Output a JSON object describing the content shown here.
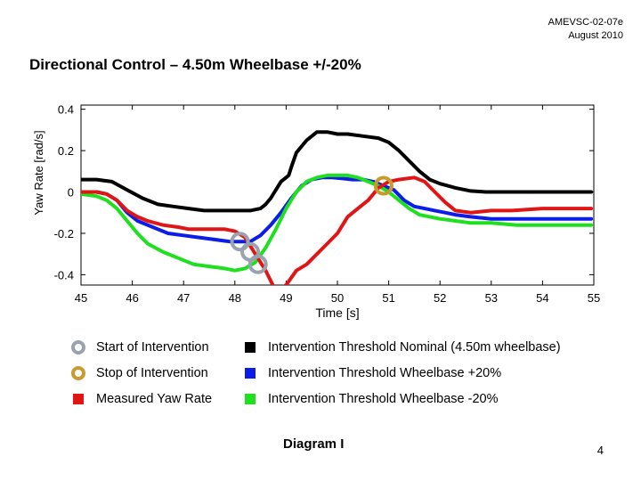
{
  "header": {
    "doc_code": "AMEVSC-02-07e",
    "date": "August 2010"
  },
  "slide_title": "Directional Control – 4.50m Wheelbase +/-20%",
  "chart_data": {
    "type": "line",
    "title": "",
    "xlabel": "Time [s]",
    "ylabel": "Yaw Rate [rad/s]",
    "xlim": [
      45,
      55
    ],
    "ylim": [
      -0.45,
      0.42
    ],
    "x_ticks": [
      "45",
      "46",
      "47",
      "48",
      "49",
      "50",
      "51",
      "52",
      "53",
      "54",
      "55"
    ],
    "y_ticks": [
      {
        "value": 0.4,
        "label": "0.4"
      },
      {
        "value": 0.2,
        "label": "0.2"
      },
      {
        "value": 0,
        "label": "0"
      },
      {
        "value": -0.2,
        "label": "-0.2"
      },
      {
        "value": -0.4,
        "label": "-0.4"
      }
    ],
    "series": [
      {
        "name": "Intervention Threshold Nominal (4.50m wheelbase)",
        "color": "#000000",
        "x": [
          45.0,
          45.3,
          45.6,
          45.9,
          46.2,
          46.5,
          46.8,
          47.1,
          47.4,
          47.7,
          48.0,
          48.3,
          48.5,
          48.6,
          48.7,
          48.9,
          49.05,
          49.1,
          49.2,
          49.4,
          49.6,
          49.8,
          50.0,
          50.2,
          50.5,
          50.8,
          51.0,
          51.2,
          51.4,
          51.6,
          51.8,
          52.0,
          52.3,
          52.6,
          52.9,
          53.2,
          53.6,
          54.0,
          54.5,
          54.95
        ],
        "y": [
          0.06,
          0.06,
          0.05,
          0.01,
          -0.03,
          -0.06,
          -0.07,
          -0.08,
          -0.09,
          -0.09,
          -0.09,
          -0.09,
          -0.08,
          -0.06,
          -0.03,
          0.05,
          0.08,
          0.12,
          0.19,
          0.25,
          0.29,
          0.29,
          0.28,
          0.28,
          0.27,
          0.26,
          0.24,
          0.2,
          0.15,
          0.1,
          0.06,
          0.04,
          0.02,
          0.005,
          0.0,
          0.0,
          0.0,
          0.0,
          0.0,
          0.0
        ]
      },
      {
        "name": "Intervention Threshold Wheelbase +20%",
        "color": "#0b1de6",
        "x": [
          45.0,
          45.3,
          45.5,
          45.7,
          45.9,
          46.1,
          46.4,
          46.7,
          47.0,
          47.3,
          47.6,
          47.9,
          48.1,
          48.3,
          48.5,
          48.7,
          48.9,
          49.1,
          49.3,
          49.5,
          49.7,
          49.9,
          50.1,
          50.3,
          50.5,
          50.7,
          50.9,
          51.1,
          51.3,
          51.5,
          51.7,
          51.9,
          52.1,
          52.3,
          52.6,
          53.0,
          53.5,
          54.0,
          54.5,
          54.95
        ],
        "y": [
          0.0,
          0.0,
          -0.01,
          -0.04,
          -0.1,
          -0.14,
          -0.17,
          -0.2,
          -0.21,
          -0.22,
          -0.23,
          -0.24,
          -0.24,
          -0.24,
          -0.21,
          -0.16,
          -0.1,
          -0.03,
          0.03,
          0.06,
          0.07,
          0.07,
          0.065,
          0.06,
          0.06,
          0.05,
          0.03,
          0.01,
          -0.04,
          -0.07,
          -0.08,
          -0.09,
          -0.1,
          -0.11,
          -0.12,
          -0.13,
          -0.13,
          -0.13,
          -0.13,
          -0.13
        ]
      },
      {
        "name": "Intervention Threshold Wheelbase -20%",
        "color": "#1fe01f",
        "x": [
          45.0,
          45.3,
          45.5,
          45.7,
          45.9,
          46.1,
          46.3,
          46.6,
          46.9,
          47.2,
          47.5,
          47.8,
          48.0,
          48.2,
          48.4,
          48.6,
          48.8,
          49.0,
          49.2,
          49.4,
          49.6,
          49.8,
          50.0,
          50.2,
          50.4,
          50.6,
          50.8,
          51.0,
          51.2,
          51.4,
          51.6,
          51.8,
          52.0,
          52.3,
          52.6,
          53.0,
          53.5,
          54.0,
          54.5,
          54.95
        ],
        "y": [
          -0.01,
          -0.02,
          -0.04,
          -0.08,
          -0.14,
          -0.2,
          -0.25,
          -0.29,
          -0.32,
          -0.35,
          -0.36,
          -0.37,
          -0.38,
          -0.37,
          -0.34,
          -0.27,
          -0.18,
          -0.08,
          0.0,
          0.05,
          0.07,
          0.08,
          0.08,
          0.08,
          0.07,
          0.05,
          0.03,
          0.0,
          -0.04,
          -0.08,
          -0.11,
          -0.12,
          -0.13,
          -0.14,
          -0.15,
          -0.15,
          -0.16,
          -0.16,
          -0.16,
          -0.16
        ]
      },
      {
        "name": "Measured Yaw Rate",
        "color": "#e01515",
        "x": [
          45.0,
          45.3,
          45.5,
          45.7,
          45.9,
          46.1,
          46.3,
          46.6,
          46.9,
          47.1,
          47.4,
          47.8,
          48.0,
          48.2,
          48.4,
          48.6,
          48.8,
          49.0,
          49.2,
          49.4,
          49.6,
          49.8,
          50.0,
          50.2,
          50.4,
          50.6,
          50.8,
          51.0,
          51.2,
          51.5,
          51.7,
          51.9,
          52.1,
          52.3,
          52.6,
          53.0,
          53.4,
          54.0,
          54.5,
          54.95
        ],
        "y": [
          0.0,
          0.0,
          -0.01,
          -0.04,
          -0.09,
          -0.12,
          -0.14,
          -0.16,
          -0.17,
          -0.18,
          -0.18,
          -0.18,
          -0.19,
          -0.22,
          -0.3,
          -0.38,
          -0.48,
          -0.45,
          -0.38,
          -0.35,
          -0.3,
          -0.25,
          -0.2,
          -0.12,
          -0.08,
          -0.04,
          0.02,
          0.05,
          0.06,
          0.07,
          0.05,
          0.0,
          -0.05,
          -0.09,
          -0.1,
          -0.09,
          -0.09,
          -0.08,
          -0.08,
          -0.08
        ]
      }
    ],
    "markers": [
      {
        "type": "Start of Intervention",
        "color": "#9aa3ad",
        "points": [
          {
            "x": 48.1,
            "y": -0.24
          },
          {
            "x": 48.3,
            "y": -0.29
          },
          {
            "x": 48.45,
            "y": -0.35
          }
        ]
      },
      {
        "type": "Stop of Intervention",
        "color": "#c99a2e",
        "points": [
          {
            "x": 50.9,
            "y": 0.03
          }
        ]
      }
    ]
  },
  "legend": [
    {
      "label": "Start of Intervention",
      "kind": "ring",
      "color": "#9aa3ad"
    },
    {
      "label": "Intervention Threshold Nominal (4.50m wheelbase)",
      "kind": "square",
      "color": "#000000"
    },
    {
      "label": "Stop of Intervention",
      "kind": "ring",
      "color": "#c99a2e"
    },
    {
      "label": "Intervention Threshold Wheelbase +20%",
      "kind": "square",
      "color": "#0b1de6"
    },
    {
      "label": "Measured Yaw Rate",
      "kind": "square",
      "color": "#e01515"
    },
    {
      "label": "Intervention Threshold Wheelbase -20%",
      "kind": "square",
      "color": "#1fe01f"
    }
  ],
  "footer": {
    "diagram_label": "Diagram I",
    "page_number": "4"
  }
}
